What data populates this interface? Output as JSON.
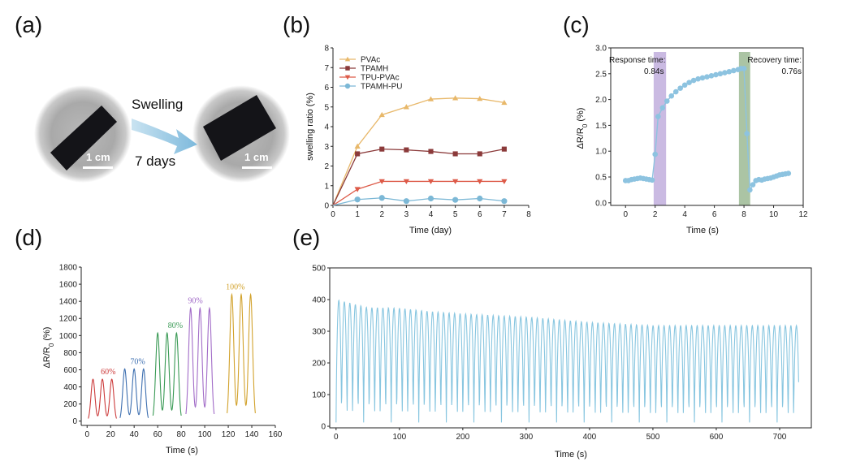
{
  "colors": {
    "axis": "#222222",
    "pvac": "#E8B86A",
    "tpamh": "#8B3A3A",
    "tpu_pvac": "#DD5A48",
    "tpamh_pu": "#7CB8D6",
    "c_series": "#8DC3E0",
    "response_band": "#B8A3D8",
    "recovery_band": "#8FB085",
    "d60": "#CC3B3B",
    "d70": "#3D6FB0",
    "d80": "#3A9A55",
    "d90": "#A26CC8",
    "d100": "#D2A22C",
    "e_series": "#88C6E0",
    "arrow": "#8EC2E0"
  },
  "panel_a": {
    "letter": "(a)",
    "arrow_top_label": "Swelling",
    "arrow_bottom_label": "7 days",
    "scale_left": "1 cm",
    "scale_right": "1 cm",
    "icons": [
      "hydrogel-before-photo-icon",
      "hydrogel-after-photo-icon",
      "right-arrow-icon"
    ]
  },
  "chart_data": [
    {
      "id": "b",
      "letter": "(b)",
      "type": "line",
      "title": "",
      "xlabel": "Time (day)",
      "ylabel": "swelling ratio (%)",
      "xlim": [
        0,
        8
      ],
      "ylim": [
        0,
        8
      ],
      "xticks": [
        0,
        1,
        2,
        3,
        4,
        5,
        6,
        7,
        8
      ],
      "yticks": [
        0,
        1,
        2,
        3,
        4,
        5,
        6,
        7,
        8
      ],
      "x": [
        0,
        1,
        2,
        3,
        4,
        5,
        6,
        7
      ],
      "legend_position": "top-left",
      "series": [
        {
          "name": "PVAc",
          "marker": "triangle-up",
          "color": "#E8B86A",
          "values": [
            0,
            3.0,
            4.6,
            5.0,
            5.4,
            5.45,
            5.42,
            5.22
          ]
        },
        {
          "name": "TPAMH",
          "marker": "square",
          "color": "#8B3A3A",
          "values": [
            0,
            2.62,
            2.86,
            2.82,
            2.74,
            2.62,
            2.62,
            2.86
          ]
        },
        {
          "name": "TPU-PVAc",
          "marker": "triangle-down",
          "color": "#DD5A48",
          "values": [
            0,
            0.82,
            1.22,
            1.22,
            1.22,
            1.22,
            1.22,
            1.22
          ]
        },
        {
          "name": "TPAMH-PU",
          "marker": "circle",
          "color": "#7CB8D6",
          "values": [
            0,
            0.3,
            0.38,
            0.22,
            0.35,
            0.28,
            0.35,
            0.22
          ]
        }
      ]
    },
    {
      "id": "c",
      "letter": "(c)",
      "type": "line",
      "title": "",
      "xlabel": "Time (s)",
      "ylabel_main": "ΔR/R",
      "ylabel_sub": "0",
      "ylabel_tail": " (%)",
      "xlim": [
        -1,
        12
      ],
      "ylim": [
        -0.05,
        3.0
      ],
      "xticks": [
        0,
        2,
        4,
        6,
        8,
        10,
        12
      ],
      "yticks": [
        0.0,
        0.5,
        1.0,
        1.5,
        2.0,
        2.5,
        3.0
      ],
      "series": [
        {
          "name": "ΔR/R0",
          "x": [
            0,
            0.2,
            0.4,
            0.6,
            0.8,
            1.0,
            1.2,
            1.4,
            1.6,
            1.8,
            2.0,
            2.2,
            2.5,
            2.8,
            3.1,
            3.4,
            3.7,
            4.0,
            4.3,
            4.6,
            4.9,
            5.2,
            5.5,
            5.8,
            6.1,
            6.4,
            6.7,
            7.0,
            7.3,
            7.6,
            7.8,
            8.0,
            8.2,
            8.4,
            8.6,
            8.8,
            9.0,
            9.2,
            9.4,
            9.6,
            9.8,
            10.0,
            10.2,
            10.4,
            10.6,
            10.8,
            11.0
          ],
          "values": [
            0.43,
            0.43,
            0.45,
            0.46,
            0.47,
            0.48,
            0.47,
            0.46,
            0.45,
            0.44,
            0.94,
            1.67,
            1.84,
            1.97,
            2.07,
            2.15,
            2.22,
            2.28,
            2.33,
            2.37,
            2.4,
            2.42,
            2.44,
            2.46,
            2.48,
            2.5,
            2.52,
            2.54,
            2.56,
            2.58,
            2.6,
            2.6,
            1.34,
            0.25,
            0.35,
            0.43,
            0.45,
            0.44,
            0.46,
            0.47,
            0.48,
            0.5,
            0.52,
            0.54,
            0.55,
            0.56,
            0.57
          ]
        }
      ],
      "bands": [
        {
          "label_line1": "Response time:",
          "label_line2": "0.84s",
          "x_start": 1.9,
          "x_end": 2.74
        },
        {
          "label_line1": "Recovery time:",
          "label_line2": "0.76s",
          "x_start": 7.66,
          "x_end": 8.42
        }
      ]
    },
    {
      "id": "d",
      "letter": "(d)",
      "type": "line",
      "title": "",
      "xlabel": "Time (s)",
      "ylabel_main": "ΔR/R",
      "ylabel_sub": "0",
      "ylabel_tail": " (%)",
      "xlim": [
        -5,
        160
      ],
      "ylim": [
        -50,
        1800
      ],
      "xticks": [
        0,
        20,
        40,
        60,
        80,
        100,
        120,
        140,
        160
      ],
      "yticks": [
        0,
        200,
        400,
        600,
        800,
        1000,
        1200,
        1400,
        1600,
        1800
      ],
      "groups": [
        {
          "label": "60%",
          "color": "#CC3B3B",
          "label_x": 18,
          "peak_times": [
            5,
            13,
            21
          ],
          "peak_value": 490
        },
        {
          "label": "70%",
          "color": "#3D6FB0",
          "label_x": 43,
          "peak_times": [
            32,
            40,
            48
          ],
          "peak_value": 610
        },
        {
          "label": "80%",
          "color": "#3A9A55",
          "label_x": 75,
          "peak_times": [
            60,
            68,
            76
          ],
          "peak_value": 1030
        },
        {
          "label": "90%",
          "color": "#A26CC8",
          "label_x": 92,
          "peak_times": [
            88,
            96,
            104
          ],
          "peak_value": 1320
        },
        {
          "label": "100%",
          "color": "#D2A22C",
          "label_x": 126,
          "peak_times": [
            123,
            131,
            139
          ],
          "peak_value": 1480
        }
      ]
    },
    {
      "id": "e",
      "letter": "(e)",
      "type": "line",
      "title": "",
      "xlabel": "Time (s)",
      "ylabel": "",
      "xlim": [
        -10,
        750
      ],
      "ylim": [
        -5,
        500
      ],
      "xticks": [
        0,
        100,
        200,
        300,
        400,
        500,
        600,
        700
      ],
      "yticks": [
        0,
        100,
        200,
        300,
        400,
        500
      ],
      "cycle_period_s": 8.7,
      "cycle_duration_s": 730,
      "baseline": 12,
      "envelope": [
        {
          "t": 0,
          "peak": 400
        },
        {
          "t": 50,
          "peak": 375
        },
        {
          "t": 100,
          "peak": 373
        },
        {
          "t": 150,
          "peak": 362
        },
        {
          "t": 200,
          "peak": 355
        },
        {
          "t": 300,
          "peak": 345
        },
        {
          "t": 400,
          "peak": 328
        },
        {
          "t": 500,
          "peak": 318
        },
        {
          "t": 600,
          "peak": 318
        },
        {
          "t": 730,
          "peak": 318
        }
      ]
    }
  ]
}
